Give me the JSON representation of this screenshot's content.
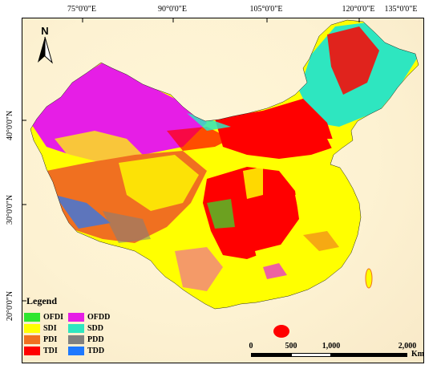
{
  "map": {
    "top_ticks": [
      "75°0'0\"E",
      "90°0'0\"E",
      "105°0'0\"E",
      "120°0'0\"E",
      "135°0'0\"E"
    ],
    "left_ticks": [
      "40°0'0\"N",
      "30°0'0\"N",
      "20°0'0\"N"
    ],
    "north_label": "N",
    "legend_title": "Legend",
    "legend": [
      {
        "code": "OFDI",
        "color": "#2ee62e"
      },
      {
        "code": "OFDD",
        "color": "#e61ee6"
      },
      {
        "code": "SDI",
        "color": "#ffff00"
      },
      {
        "code": "SDD",
        "color": "#2ee6c0"
      },
      {
        "code": "PDI",
        "color": "#f07020"
      },
      {
        "code": "PDD",
        "color": "#808080"
      },
      {
        "code": "TDI",
        "color": "#ff0000"
      },
      {
        "code": "TDD",
        "color": "#1e78ff"
      }
    ],
    "scale": {
      "labels": [
        "0",
        "500",
        "1,000",
        "2,000"
      ],
      "unit": "Km"
    }
  }
}
